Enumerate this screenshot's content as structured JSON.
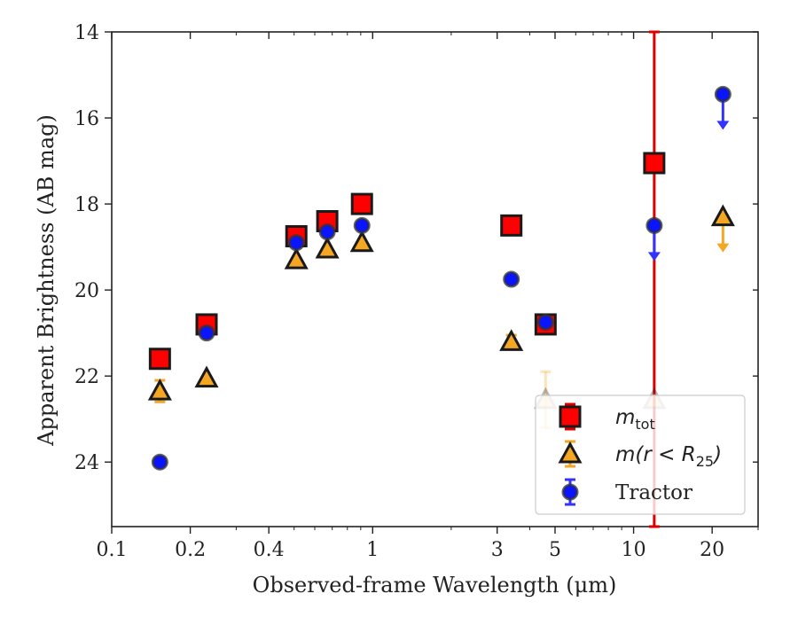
{
  "chart_data": {
    "type": "scatter",
    "title": "",
    "xlabel": "Observed-frame Wavelength (μm)",
    "ylabel": "Apparent Brightness (AB mag)",
    "xscale": "log",
    "xlim": [
      0.1,
      30
    ],
    "ylim": [
      25.5,
      14
    ],
    "y_inverted": true,
    "x_ticks": [
      0.1,
      0.2,
      0.4,
      1,
      3,
      5,
      10,
      20
    ],
    "x_tick_labels": [
      "0.1",
      "0.2",
      "0.4",
      "1",
      "3",
      "5",
      "10",
      "20"
    ],
    "y_ticks": [
      14,
      16,
      18,
      20,
      22,
      24
    ],
    "y_tick_labels": [
      "14",
      "16",
      "18",
      "20",
      "22",
      "24"
    ],
    "grid": false,
    "legend_position": "bottom-right",
    "series": [
      {
        "name": "m_tot",
        "label_main": "m",
        "label_sub": "tot",
        "marker": "square",
        "face_color": "#ff0000",
        "edge_color": "#1a1a1a",
        "errorbar_color": "#dd0000",
        "points": [
          {
            "x": 0.153,
            "y": 21.6
          },
          {
            "x": 0.231,
            "y": 20.8
          },
          {
            "x": 0.51,
            "y": 18.75
          },
          {
            "x": 0.67,
            "y": 18.4
          },
          {
            "x": 0.91,
            "y": 18.0
          },
          {
            "x": 3.4,
            "y": 18.5
          },
          {
            "x": 4.6,
            "y": 20.8
          },
          {
            "x": 12.0,
            "y": 17.05,
            "yerr": 99
          }
        ]
      },
      {
        "name": "m(r < R25)",
        "label_main": "m(r < R",
        "label_sub": "25",
        "label_end": ")",
        "marker": "triangle",
        "face_color": "#f5a623",
        "edge_color": "#1a1a1a",
        "errorbar_color": "#f5a623",
        "points": [
          {
            "x": 0.153,
            "y": 22.35,
            "yerr": 0.25
          },
          {
            "x": 0.231,
            "y": 22.05
          },
          {
            "x": 0.51,
            "y": 19.3
          },
          {
            "x": 0.67,
            "y": 19.05
          },
          {
            "x": 0.91,
            "y": 18.9
          },
          {
            "x": 3.4,
            "y": 21.2,
            "yerr": 0.15
          },
          {
            "x": 4.6,
            "y": 22.55,
            "yerr": 0.65,
            "faded": true
          },
          {
            "x": 12.0,
            "y": 22.55,
            "faded": true
          },
          {
            "x": 22.0,
            "y": 18.3,
            "upper_limit": true
          }
        ]
      },
      {
        "name": "Tractor",
        "label_main": "Tractor",
        "marker": "circle",
        "face_color": "#0a14ff",
        "edge_color": "#333333",
        "errorbar_color": "#3333ff",
        "points": [
          {
            "x": 0.153,
            "y": 24.0
          },
          {
            "x": 0.231,
            "y": 21.0
          },
          {
            "x": 0.51,
            "y": 18.9
          },
          {
            "x": 0.67,
            "y": 18.65
          },
          {
            "x": 0.91,
            "y": 18.5
          },
          {
            "x": 3.4,
            "y": 19.75
          },
          {
            "x": 4.6,
            "y": 20.75
          },
          {
            "x": 12.0,
            "y": 18.5,
            "upper_limit": true
          },
          {
            "x": 22.0,
            "y": 15.45,
            "upper_limit": true
          }
        ]
      }
    ]
  }
}
